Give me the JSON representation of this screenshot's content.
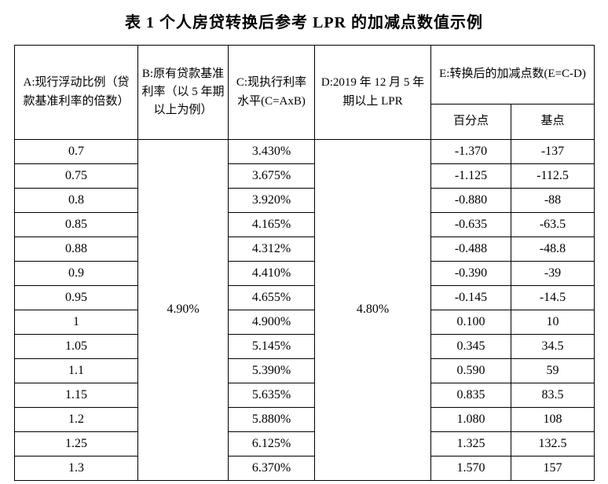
{
  "title": "表 1 个人房贷转换后参考 LPR 的加减点数值示例",
  "table": {
    "headers": {
      "a": "A:现行浮动比例（贷款基准利率的倍数）",
      "b": "B:原有贷款基准利率（以 5 年期以上为例）",
      "c": "C:现执行利率水平(C=AxB)",
      "d": "D:2019 年 12 月 5 年期以上 LPR",
      "e": "E:转换后的加减点数(E=C-D)",
      "e_sub1": "百分点",
      "e_sub2": "基点"
    },
    "b_value": "4.90%",
    "d_value": "4.80%",
    "rows": [
      {
        "a": "0.7",
        "c": "3.430%",
        "pct": "-1.370",
        "bp": "-137"
      },
      {
        "a": "0.75",
        "c": "3.675%",
        "pct": "-1.125",
        "bp": "-112.5"
      },
      {
        "a": "0.8",
        "c": "3.920%",
        "pct": "-0.880",
        "bp": "-88"
      },
      {
        "a": "0.85",
        "c": "4.165%",
        "pct": "-0.635",
        "bp": "-63.5"
      },
      {
        "a": "0.88",
        "c": "4.312%",
        "pct": "-0.488",
        "bp": "-48.8"
      },
      {
        "a": "0.9",
        "c": "4.410%",
        "pct": "-0.390",
        "bp": "-39"
      },
      {
        "a": "0.95",
        "c": "4.655%",
        "pct": "-0.145",
        "bp": "-14.5"
      },
      {
        "a": "1",
        "c": "4.900%",
        "pct": "0.100",
        "bp": "10"
      },
      {
        "a": "1.05",
        "c": "5.145%",
        "pct": "0.345",
        "bp": "34.5"
      },
      {
        "a": "1.1",
        "c": "5.390%",
        "pct": "0.590",
        "bp": "59"
      },
      {
        "a": "1.15",
        "c": "5.635%",
        "pct": "0.835",
        "bp": "83.5"
      },
      {
        "a": "1.2",
        "c": "5.880%",
        "pct": "1.080",
        "bp": "108"
      },
      {
        "a": "1.25",
        "c": "6.125%",
        "pct": "1.325",
        "bp": "132.5"
      },
      {
        "a": "1.3",
        "c": "6.370%",
        "pct": "1.570",
        "bp": "157"
      }
    ]
  }
}
